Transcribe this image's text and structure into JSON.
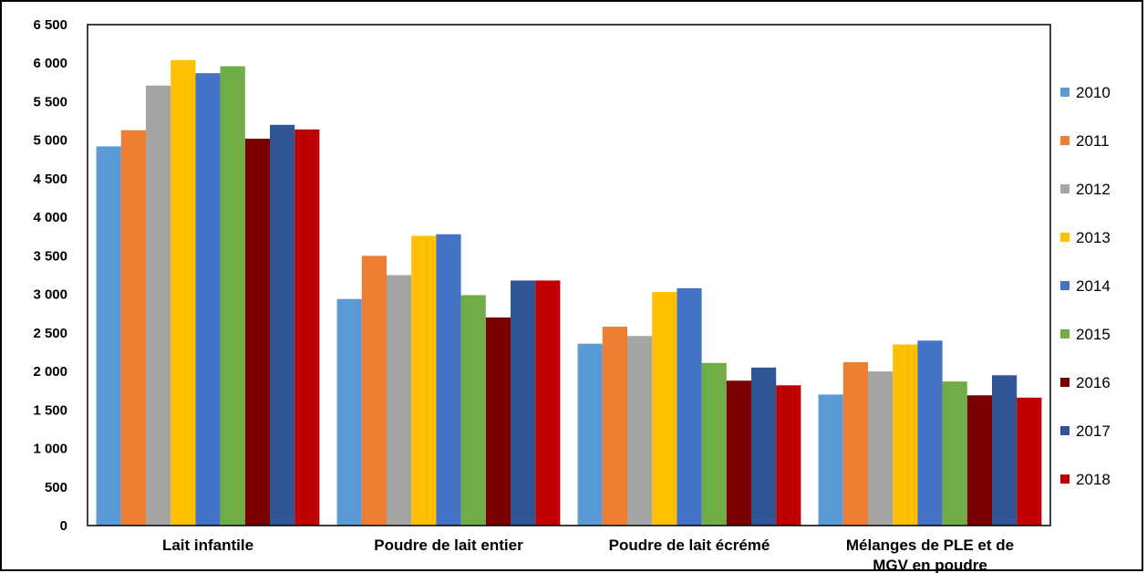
{
  "chart_data": {
    "type": "bar",
    "categories": [
      [
        "Lait infantile"
      ],
      [
        "Poudre de lait entier"
      ],
      [
        "Poudre de lait écrémé"
      ],
      [
        "Mélanges de PLE et de",
        "MGV en poudre"
      ]
    ],
    "series": [
      {
        "name": "2010",
        "color": "#5b9bd5",
        "values": [
          4920,
          2940,
          2360,
          1700
        ]
      },
      {
        "name": "2011",
        "color": "#ed7d31",
        "values": [
          5130,
          3500,
          2580,
          2120
        ]
      },
      {
        "name": "2012",
        "color": "#a5a5a5",
        "values": [
          5710,
          3250,
          2460,
          2000
        ]
      },
      {
        "name": "2013",
        "color": "#ffc000",
        "values": [
          6040,
          3760,
          3030,
          2350
        ]
      },
      {
        "name": "2014",
        "color": "#4472c4",
        "values": [
          5870,
          3780,
          3080,
          2400
        ]
      },
      {
        "name": "2015",
        "color": "#70ad47",
        "values": [
          5960,
          2990,
          2110,
          1870
        ]
      },
      {
        "name": "2016",
        "color": "#7b0000",
        "values": [
          5020,
          2700,
          1880,
          1690
        ]
      },
      {
        "name": "2017",
        "color": "#2f5597",
        "values": [
          5200,
          3180,
          2050,
          1950
        ]
      },
      {
        "name": "2018",
        "color": "#c00000",
        "values": [
          5140,
          3180,
          1820,
          1660
        ]
      }
    ],
    "yticks": [
      "0",
      "500",
      "1 000",
      "1 500",
      "2 000",
      "2 500",
      "3 000",
      "3 500",
      "4 000",
      "4 500",
      "5 000",
      "5 500",
      "6 000",
      "6 500"
    ],
    "ylim": [
      0,
      6500
    ],
    "grid": false,
    "legend_position": "right"
  }
}
